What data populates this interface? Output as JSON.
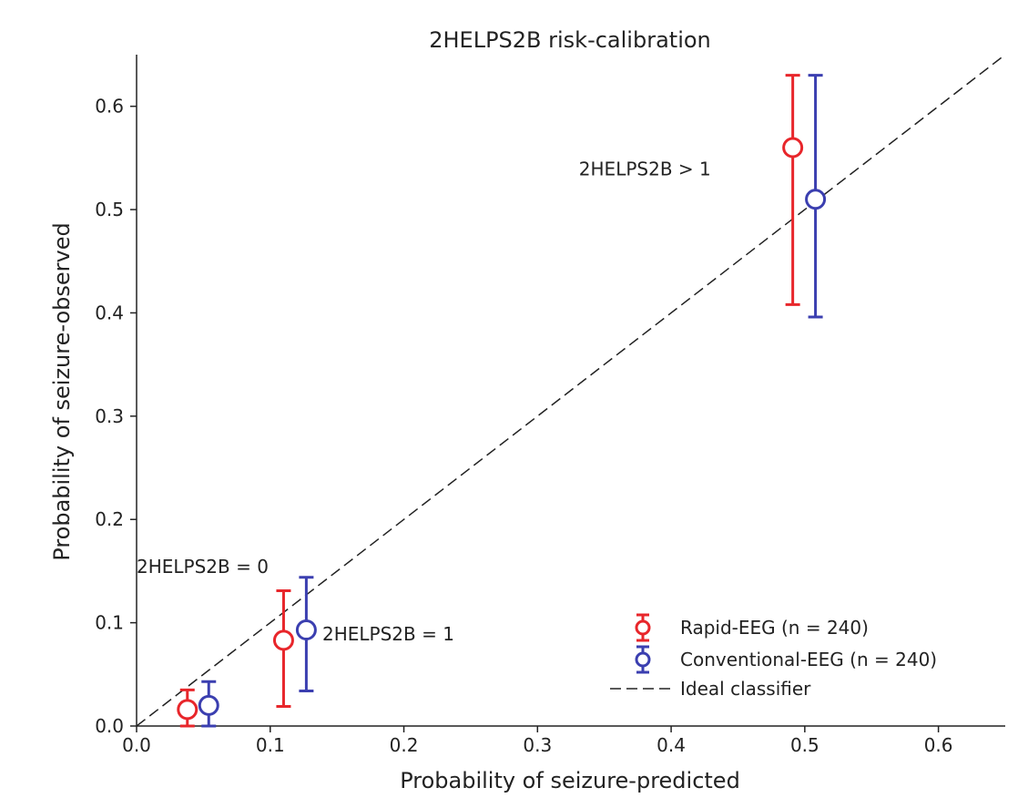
{
  "chart_data": {
    "type": "scatter",
    "title": "2HELPS2B risk-calibration",
    "xlabel": "Probability of seizure-predicted",
    "ylabel": "Probability of seizure-observed",
    "xlim": [
      0,
      0.65
    ],
    "ylim": [
      0,
      0.65
    ],
    "xticks": [
      "0.0",
      "0.1",
      "0.2",
      "0.3",
      "0.4",
      "0.5",
      "0.6"
    ],
    "yticks": [
      "0.0",
      "0.1",
      "0.2",
      "0.3",
      "0.4",
      "0.5",
      "0.6"
    ],
    "grid": false,
    "legend_position": "bottom-right",
    "series": [
      {
        "name": "Rapid-EEG (n = 240)",
        "color": "#e8262b",
        "marker": "open-circle",
        "points": [
          {
            "x": 0.038,
            "y": 0.016,
            "ylow": 0.0,
            "yhigh": 0.035
          },
          {
            "x": 0.11,
            "y": 0.083,
            "ylow": 0.019,
            "yhigh": 0.131
          },
          {
            "x": 0.491,
            "y": 0.56,
            "ylow": 0.408,
            "yhigh": 0.63
          }
        ]
      },
      {
        "name": "Conventional-EEG (n = 240)",
        "color": "#3b3fb0",
        "marker": "open-circle",
        "points": [
          {
            "x": 0.054,
            "y": 0.02,
            "ylow": 0.0,
            "yhigh": 0.043
          },
          {
            "x": 0.127,
            "y": 0.093,
            "ylow": 0.034,
            "yhigh": 0.144
          },
          {
            "x": 0.508,
            "y": 0.51,
            "ylow": 0.396,
            "yhigh": 0.63
          }
        ]
      }
    ],
    "reference_line": {
      "name": "Ideal classifier",
      "style": "dashed",
      "color": "#222222",
      "from": [
        0,
        0
      ],
      "to": [
        0.65,
        0.65
      ]
    },
    "annotations": [
      {
        "text": "2HELPS2B = 0",
        "x": 0.0,
        "y": 0.148
      },
      {
        "text": "2HELPS2B = 1",
        "x": 0.139,
        "y": 0.083
      },
      {
        "text": "2HELPS2B > 1",
        "x": 0.331,
        "y": 0.533
      }
    ]
  }
}
